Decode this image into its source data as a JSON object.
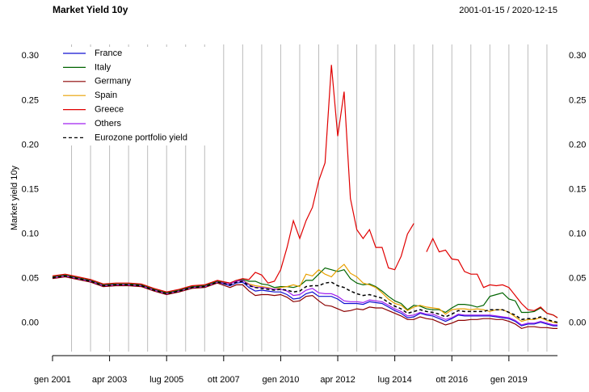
{
  "chart_data": {
    "type": "line",
    "title": "Market Yield 10y",
    "subtitle": "2001-01-15 / 2020-12-15",
    "y_label": "Market yield 10y",
    "x": [
      "2001-01",
      "2001-07",
      "2002-01",
      "2002-07",
      "2003-01",
      "2003-07",
      "2004-01",
      "2004-07",
      "2005-01",
      "2005-07",
      "2006-01",
      "2006-07",
      "2007-01",
      "2007-07",
      "2008-01",
      "2008-04",
      "2008-07",
      "2008-10",
      "2009-01",
      "2009-04",
      "2009-07",
      "2009-10",
      "2010-01",
      "2010-04",
      "2010-07",
      "2010-10",
      "2011-01",
      "2011-04",
      "2011-07",
      "2011-10",
      "2012-01",
      "2012-04",
      "2012-07",
      "2012-10",
      "2013-01",
      "2013-04",
      "2013-07",
      "2013-10",
      "2014-01",
      "2014-04",
      "2014-07",
      "2014-10",
      "2015-01",
      "2015-04",
      "2015-07",
      "2015-10",
      "2016-01",
      "2016-04",
      "2016-07",
      "2016-10",
      "2017-01",
      "2017-04",
      "2017-07",
      "2017-10",
      "2018-01",
      "2018-04",
      "2018-07",
      "2018-10",
      "2019-01",
      "2019-04",
      "2019-07",
      "2019-10",
      "2020-01",
      "2020-04",
      "2020-07",
      "2020-10",
      "2020-12"
    ],
    "xlim": [
      "2001-01",
      "2020-12"
    ],
    "xticks": [
      {
        "value": "2001-01",
        "label": "gen 2001"
      },
      {
        "value": "2003-04",
        "label": "apr 2003"
      },
      {
        "value": "2005-07",
        "label": "lug 2005"
      },
      {
        "value": "2007-10",
        "label": "ott 2007"
      },
      {
        "value": "2010-01",
        "label": "gen 2010"
      },
      {
        "value": "2012-04",
        "label": "apr 2012"
      },
      {
        "value": "2014-07",
        "label": "lug 2014"
      },
      {
        "value": "2016-10",
        "label": "ott 2016"
      },
      {
        "value": "2019-01",
        "label": "gen 2019"
      }
    ],
    "xgrid": [
      "2001-10",
      "2002-07",
      "2003-04",
      "2004-01",
      "2004-10",
      "2005-07",
      "2006-04",
      "2007-01",
      "2007-10",
      "2008-07",
      "2009-04",
      "2010-01",
      "2010-10",
      "2011-07",
      "2012-04",
      "2013-01",
      "2013-10",
      "2014-07",
      "2015-04",
      "2016-01",
      "2016-10",
      "2017-07",
      "2018-04",
      "2019-01",
      "2019-10",
      "2020-07"
    ],
    "ylim": [
      -0.032,
      0.313
    ],
    "yticks": [
      {
        "value": 0,
        "label": "0.00"
      },
      {
        "value": 0.05,
        "label": "0.05"
      },
      {
        "value": 0.1,
        "label": "0.10"
      },
      {
        "value": 0.15,
        "label": "0.15"
      },
      {
        "value": 0.2,
        "label": "0.20"
      },
      {
        "value": 0.25,
        "label": "0.25"
      },
      {
        "value": 0.3,
        "label": "0.30"
      }
    ],
    "legend": "top-left",
    "series": [
      {
        "name": "France",
        "color": "#1010d0",
        "values": [
          0.051,
          0.053,
          0.05,
          0.047,
          0.042,
          0.043,
          0.043,
          0.042,
          0.037,
          0.033,
          0.036,
          0.04,
          0.041,
          0.046,
          0.042,
          0.045,
          0.046,
          0.04,
          0.036,
          0.037,
          0.036,
          0.035,
          0.035,
          0.032,
          0.027,
          0.028,
          0.033,
          0.035,
          0.03,
          0.03,
          0.03,
          0.027,
          0.022,
          0.022,
          0.022,
          0.021,
          0.024,
          0.023,
          0.022,
          0.018,
          0.014,
          0.011,
          0.006,
          0.007,
          0.011,
          0.009,
          0.008,
          0.005,
          0.002,
          0.005,
          0.009,
          0.008,
          0.008,
          0.008,
          0.008,
          0.008,
          0.007,
          0.006,
          0.005,
          0.002,
          -0.003,
          -0.001,
          -0.001,
          0.001,
          -0.001,
          -0.003,
          -0.003
        ]
      },
      {
        "name": "Italy",
        "color": "#006400",
        "values": [
          0.052,
          0.054,
          0.051,
          0.048,
          0.043,
          0.044,
          0.044,
          0.043,
          0.038,
          0.034,
          0.037,
          0.041,
          0.042,
          0.047,
          0.045,
          0.048,
          0.049,
          0.047,
          0.047,
          0.044,
          0.043,
          0.04,
          0.041,
          0.041,
          0.04,
          0.042,
          0.048,
          0.048,
          0.055,
          0.062,
          0.06,
          0.058,
          0.06,
          0.05,
          0.045,
          0.043,
          0.044,
          0.041,
          0.036,
          0.03,
          0.025,
          0.022,
          0.015,
          0.02,
          0.019,
          0.016,
          0.015,
          0.015,
          0.012,
          0.017,
          0.021,
          0.021,
          0.02,
          0.018,
          0.02,
          0.03,
          0.032,
          0.034,
          0.027,
          0.025,
          0.012,
          0.012,
          0.013,
          0.017,
          0.011,
          0.009,
          0.006
        ]
      },
      {
        "name": "Germany",
        "color": "#8b0000",
        "values": [
          0.05,
          0.052,
          0.049,
          0.046,
          0.041,
          0.042,
          0.042,
          0.041,
          0.036,
          0.032,
          0.035,
          0.039,
          0.04,
          0.045,
          0.04,
          0.043,
          0.043,
          0.036,
          0.031,
          0.032,
          0.032,
          0.031,
          0.032,
          0.029,
          0.024,
          0.025,
          0.03,
          0.031,
          0.025,
          0.02,
          0.019,
          0.016,
          0.013,
          0.014,
          0.016,
          0.015,
          0.018,
          0.017,
          0.017,
          0.014,
          0.011,
          0.008,
          0.004,
          0.004,
          0.007,
          0.005,
          0.004,
          0.001,
          -0.002,
          0.0,
          0.003,
          0.003,
          0.004,
          0.004,
          0.005,
          0.005,
          0.004,
          0.004,
          0.002,
          -0.001,
          -0.006,
          -0.004,
          -0.004,
          -0.005,
          -0.005,
          -0.006,
          -0.006
        ]
      },
      {
        "name": "Spain",
        "color": "#e8a000",
        "values": [
          0.051,
          0.053,
          0.05,
          0.047,
          0.042,
          0.043,
          0.043,
          0.042,
          0.037,
          0.033,
          0.036,
          0.04,
          0.041,
          0.046,
          0.044,
          0.047,
          0.048,
          0.044,
          0.042,
          0.041,
          0.04,
          0.038,
          0.04,
          0.041,
          0.043,
          0.041,
          0.055,
          0.053,
          0.06,
          0.055,
          0.052,
          0.06,
          0.066,
          0.056,
          0.052,
          0.045,
          0.043,
          0.04,
          0.034,
          0.027,
          0.022,
          0.02,
          0.014,
          0.018,
          0.02,
          0.018,
          0.017,
          0.016,
          0.01,
          0.015,
          0.016,
          0.016,
          0.015,
          0.016,
          0.015,
          0.013,
          0.015,
          0.015,
          0.012,
          0.007,
          0.002,
          0.004,
          0.004,
          0.006,
          0.003,
          0.001,
          0.0
        ]
      },
      {
        "name": "Greece",
        "color": "#e00000",
        "values": [
          0.053,
          0.055,
          0.052,
          0.049,
          0.044,
          0.045,
          0.045,
          0.044,
          0.039,
          0.035,
          0.038,
          0.042,
          0.043,
          0.048,
          0.045,
          0.048,
          0.05,
          0.049,
          0.057,
          0.054,
          0.045,
          0.047,
          0.06,
          0.085,
          0.115,
          0.095,
          0.115,
          0.13,
          0.16,
          0.18,
          0.29,
          0.21,
          0.26,
          0.14,
          0.105,
          0.095,
          0.105,
          0.085,
          0.085,
          0.062,
          0.06,
          0.075,
          0.1,
          0.112,
          null,
          0.08,
          0.095,
          0.08,
          0.082,
          0.072,
          0.071,
          0.058,
          0.055,
          0.055,
          0.04,
          0.043,
          0.042,
          0.043,
          0.04,
          0.031,
          0.022,
          0.015,
          0.014,
          0.018,
          0.011,
          0.009,
          0.006
        ]
      },
      {
        "name": "Others",
        "color": "#a020f0",
        "values": [
          0.051,
          0.053,
          0.05,
          0.047,
          0.042,
          0.043,
          0.043,
          0.042,
          0.037,
          0.033,
          0.036,
          0.04,
          0.041,
          0.046,
          0.044,
          0.047,
          0.048,
          0.043,
          0.04,
          0.04,
          0.039,
          0.038,
          0.038,
          0.036,
          0.031,
          0.032,
          0.037,
          0.039,
          0.034,
          0.033,
          0.033,
          0.03,
          0.025,
          0.024,
          0.024,
          0.023,
          0.026,
          0.025,
          0.024,
          0.02,
          0.016,
          0.013,
          0.008,
          0.009,
          0.012,
          0.01,
          0.01,
          0.007,
          0.004,
          0.006,
          0.01,
          0.009,
          0.009,
          0.009,
          0.009,
          0.009,
          0.008,
          0.007,
          0.006,
          0.003,
          -0.002,
          0.0,
          0.0,
          0.002,
          0.0,
          -0.002,
          -0.002
        ]
      },
      {
        "name": "Eurozone portfolio yield",
        "color": "#000000",
        "dash": true,
        "values": [
          0.051,
          0.053,
          0.05,
          0.047,
          0.042,
          0.043,
          0.043,
          0.042,
          0.037,
          0.033,
          0.036,
          0.04,
          0.041,
          0.046,
          0.043,
          0.046,
          0.047,
          0.042,
          0.04,
          0.039,
          0.038,
          0.037,
          0.038,
          0.037,
          0.035,
          0.036,
          0.041,
          0.042,
          0.042,
          0.045,
          0.046,
          0.042,
          0.04,
          0.036,
          0.033,
          0.031,
          0.032,
          0.03,
          0.028,
          0.023,
          0.019,
          0.016,
          0.011,
          0.013,
          0.015,
          0.013,
          0.012,
          0.01,
          0.007,
          0.01,
          0.014,
          0.013,
          0.013,
          0.013,
          0.013,
          0.015,
          0.015,
          0.015,
          0.012,
          0.009,
          0.004,
          0.005,
          0.005,
          0.007,
          0.004,
          0.002,
          0.001
        ]
      }
    ]
  }
}
